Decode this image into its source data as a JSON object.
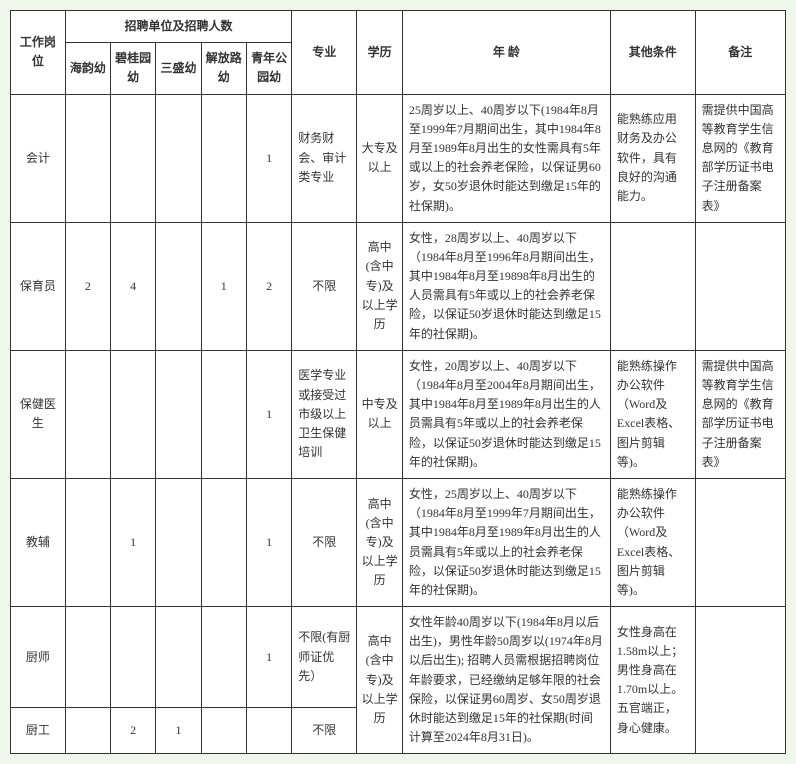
{
  "headers": {
    "position": "工作岗位",
    "unitsHeader": "招聘单位及招聘人数",
    "units": [
      "海韵幼",
      "碧桂园幼",
      "三盛幼",
      "解放路幼",
      "青年公园幼"
    ],
    "major": "专业",
    "education": "学历",
    "age": "年  龄",
    "other": "其他条件",
    "remark": "备注"
  },
  "rows": [
    {
      "position": "会计",
      "counts": [
        "",
        "",
        "",
        "",
        "1"
      ],
      "major": "财务财会、审计类专业",
      "education": "大专及以上",
      "age": "25周岁以上、40周岁以下(1984年8月至1999年7月期间出生，其中1984年8月至1989年8月出生的女性需具有5年或以上的社会养老保险，以保证男60岁，女50岁退休时能达到缴足15年的社保期)。",
      "other": "能熟练应用财务及办公软件，具有良好的沟通能力。",
      "remark": "需提供中国高等教育学生信息网的《教育部学历证书电子注册备案表》"
    },
    {
      "position": "保育员",
      "counts": [
        "2",
        "4",
        "",
        "1",
        "2"
      ],
      "major": "不限",
      "education": "高中(含中专)及以上学历",
      "age": "女性，28周岁以上、40周岁以下（1984年8月至1996年8月期间出生，其中1984年8月至19898年8月出生的人员需具有5年或以上的社会养老保险，以保证50岁退休时能达到缴足15年的社保期)。",
      "other": "",
      "remark": ""
    },
    {
      "position": "保健医生",
      "counts": [
        "",
        "",
        "",
        "",
        "1"
      ],
      "major": "医学专业或接受过市级以上卫生保健培训",
      "education": "中专及以上",
      "age": "女性，20周岁以上、40周岁以下（1984年8月至2004年8月期间出生，其中1984年8月至1989年8月出生的人员需具有5年或以上的社会养老保险，以保证50岁退休时能达到缴足15年的社保期)。",
      "other": "能熟练操作办公软件（Word及Excel表格、图片剪辑等)。",
      "remark": "需提供中国高等教育学生信息网的《教育部学历证书电子注册备案表》"
    },
    {
      "position": "教辅",
      "counts": [
        "",
        "1",
        "",
        "",
        "1"
      ],
      "major": "不限",
      "education": "高中(含中专)及以上学历",
      "age": "女性，25周岁以上、40周岁以下（1984年8月至1999年7月期间出生，其中1984年8月至1989年8月出生的人员需具有5年或以上的社会养老保险，以保证50岁退休时能达到缴足15年的社保期)。",
      "other": "能熟练操作办公软件（Word及Excel表格、图片剪辑等)。",
      "remark": ""
    },
    {
      "position": "厨师",
      "counts": [
        "",
        "",
        "",
        "",
        "1"
      ],
      "major": "不限(有厨师证优先）",
      "education": "高中(含中专)及以上学历",
      "age": "女性年龄40周岁以下(1984年8月以后出生)，男性年龄50周岁以(1974年8月以后出生); 招聘人员需根据招聘岗位年龄要求，已经缴纳足够年限的社会保险，以保证男60周岁、女50周岁退休时能达到缴足15年的社保期(时间计算至2024年8月31日)。",
      "other": "女性身高在1.58m以上；男性身高在1.70m以上。五官端正，身心健康。",
      "remark": ""
    },
    {
      "position": "厨工",
      "counts": [
        "",
        "2",
        "1",
        "",
        ""
      ],
      "major": "不限"
    }
  ]
}
